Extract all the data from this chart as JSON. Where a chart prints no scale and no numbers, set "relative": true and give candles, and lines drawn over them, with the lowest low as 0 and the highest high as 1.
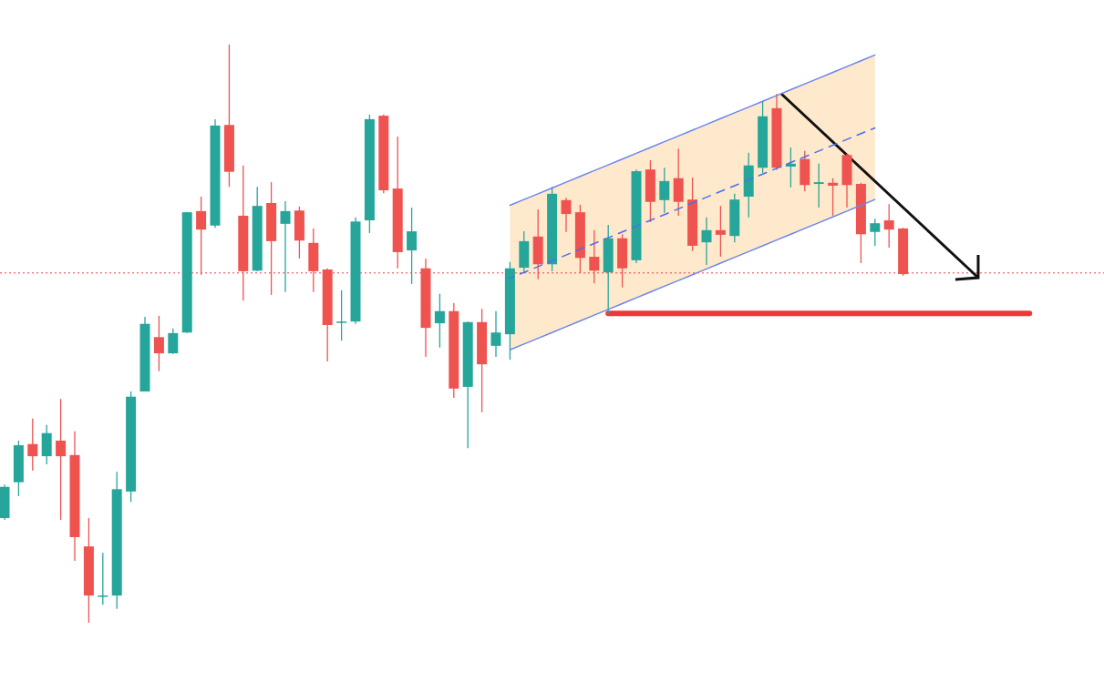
{
  "chart_data": {
    "type": "candlestick",
    "relative": true,
    "categories": [
      null,
      null,
      null,
      null,
      null,
      null,
      null,
      null,
      null,
      null,
      null,
      null,
      null,
      null,
      null,
      null,
      null,
      null,
      null,
      null,
      null,
      null,
      null,
      null,
      null,
      null,
      null,
      null,
      null,
      null,
      null,
      null,
      null,
      null,
      null,
      null,
      null,
      null,
      null,
      null,
      null,
      null,
      null,
      null,
      null,
      null,
      null,
      null,
      null,
      null,
      null,
      null,
      null,
      null,
      null,
      null,
      null,
      null,
      null,
      null,
      null,
      null,
      null,
      null,
      null,
      null,
      null,
      null,
      null,
      null,
      null,
      null,
      null,
      null,
      null
    ],
    "ohlc": [
      [
        0.181,
        0.239,
        0.178,
        0.235
      ],
      [
        0.243,
        0.315,
        0.219,
        0.307
      ],
      [
        0.309,
        0.353,
        0.263,
        0.288
      ],
      [
        0.288,
        0.342,
        0.274,
        0.328
      ],
      [
        0.315,
        0.387,
        0.178,
        0.288
      ],
      [
        0.29,
        0.331,
        0.107,
        0.148
      ],
      [
        0.132,
        0.181,
        0,
        0.047
      ],
      [
        0.046,
        0.121,
        0.031,
        0.047
      ],
      [
        0.047,
        0.261,
        0.024,
        0.231
      ],
      [
        0.227,
        0.4,
        0.209,
        0.391
      ],
      [
        0.4,
        0.529,
        0.4,
        0.517
      ],
      [
        0.494,
        0.531,
        0.435,
        0.466
      ],
      [
        0.466,
        0.509,
        0.465,
        0.501
      ],
      [
        0.502,
        0.71,
        0.501,
        0.71
      ],
      [
        0.712,
        0.737,
        0.602,
        0.68
      ],
      [
        0.687,
        0.871,
        0.683,
        0.86
      ],
      [
        0.861,
        1,
        0.754,
        0.78
      ],
      [
        0.704,
        0.791,
        0.557,
        0.608
      ],
      [
        0.609,
        0.754,
        0.608,
        0.721
      ],
      [
        0.726,
        0.762,
        0.567,
        0.66
      ],
      [
        0.69,
        0.729,
        0.572,
        0.712
      ],
      [
        0.713,
        0.72,
        0.63,
        0.661
      ],
      [
        0.657,
        0.682,
        0.572,
        0.608
      ],
      [
        0.611,
        0.613,
        0.452,
        0.515
      ],
      [
        0.52,
        0.575,
        0.488,
        0.521
      ],
      [
        0.521,
        0.701,
        0.517,
        0.694
      ],
      [
        0.696,
        0.879,
        0.674,
        0.871
      ],
      [
        0.877,
        0.879,
        0.743,
        0.748
      ],
      [
        0.751,
        0.841,
        0.613,
        0.641
      ],
      [
        0.644,
        0.718,
        0.586,
        0.677
      ],
      [
        0.613,
        0.63,
        0.46,
        0.51
      ],
      [
        0.518,
        0.569,
        0.476,
        0.539
      ],
      [
        0.539,
        0.553,
        0.389,
        0.405
      ],
      [
        0.408,
        0.521,
        0.302,
        0.52
      ],
      [
        0.52,
        0.543,
        0.364,
        0.447
      ],
      [
        0.479,
        0.539,
        0.46,
        0.502
      ],
      [
        0.499,
        0.624,
        0.455,
        0.613
      ],
      [
        0.614,
        0.677,
        0.605,
        0.66
      ],
      [
        0.668,
        0.715,
        0.594,
        0.62
      ],
      [
        0.62,
        0.754,
        0.608,
        0.742
      ],
      [
        0.731,
        0.735,
        0.676,
        0.707
      ],
      [
        0.71,
        0.723,
        0.605,
        0.631
      ],
      [
        0.633,
        0.679,
        0.587,
        0.609
      ],
      [
        0.606,
        0.688,
        0.534,
        0.665
      ],
      [
        0.665,
        0.672,
        0.58,
        0.613
      ],
      [
        0.627,
        0.784,
        0.622,
        0.781
      ],
      [
        0.784,
        0.8,
        0.693,
        0.728
      ],
      [
        0.731,
        0.787,
        0.709,
        0.764
      ],
      [
        0.769,
        0.82,
        0.704,
        0.728
      ],
      [
        0.732,
        0.77,
        0.643,
        0.652
      ],
      [
        0.658,
        0.701,
        0.619,
        0.679
      ],
      [
        0.679,
        0.721,
        0.633,
        0.671
      ],
      [
        0.669,
        0.742,
        0.658,
        0.732
      ],
      [
        0.737,
        0.813,
        0.701,
        0.791
      ],
      [
        0.787,
        0.901,
        0.778,
        0.876
      ],
      [
        0.89,
        0.915,
        0.783,
        0.787
      ],
      [
        0.789,
        0.822,
        0.753,
        0.794
      ],
      [
        0.802,
        0.816,
        0.746,
        0.757
      ],
      [
        0.759,
        0.794,
        0.718,
        0.762
      ],
      [
        0.761,
        0.769,
        0.704,
        0.756
      ],
      [
        0.809,
        0.811,
        0.718,
        0.757
      ],
      [
        0.759,
        0.761,
        0.622,
        0.672
      ],
      [
        0.676,
        0.699,
        0.652,
        0.691
      ],
      [
        0.696,
        0.724,
        0.649,
        0.68
      ],
      [
        0.682,
        0.683,
        0.6,
        0.603
      ],
      null,
      null,
      null,
      null,
      null,
      null,
      null,
      null,
      null,
      null
    ],
    "colors": [
      "#26a69a",
      "#26a69a",
      "#ef5350",
      "#26a69a",
      "#ef5350",
      "#ef5350",
      "#ef5350",
      "#26a69a",
      "#26a69a",
      "#26a69a",
      "#26a69a",
      "#ef5350",
      "#26a69a",
      "#26a69a",
      "#ef5350",
      "#26a69a",
      "#ef5350",
      "#ef5350",
      "#26a69a",
      "#ef5350",
      "#26a69a",
      "#ef5350",
      "#ef5350",
      "#ef5350",
      "#26a69a",
      "#26a69a",
      "#26a69a",
      "#ef5350",
      "#ef5350",
      "#26a69a",
      "#ef5350",
      "#26a69a",
      "#ef5350",
      "#26a69a",
      "#ef5350",
      "#26a69a",
      "#26a69a",
      "#26a69a",
      "#ef5350",
      "#26a69a",
      "#ef5350",
      "#ef5350",
      "#ef5350",
      "#26a69a",
      "#ef5350",
      "#26a69a",
      "#ef5350",
      "#26a69a",
      "#ef5350",
      "#ef5350",
      "#26a69a",
      "#ef5350",
      "#26a69a",
      "#26a69a",
      "#26a69a",
      "#ef5350",
      "#26a69a",
      "#ef5350",
      "#26a69a",
      "#ef5350",
      "#ef5350",
      "#ef5350",
      "#26a69a",
      "#ef5350",
      "#ef5350",
      null,
      null,
      null,
      null,
      null,
      null,
      null,
      null,
      null,
      null
    ],
    "series": [
      {
        "type": "line",
        "color": "#6a85ee",
        "values": [
          null,
          null,
          null,
          null,
          null,
          null,
          null,
          null,
          null,
          null,
          null,
          null,
          null,
          null,
          null,
          null,
          null,
          null,
          null,
          null,
          null,
          null,
          null,
          null,
          null,
          null,
          null,
          null,
          null,
          null,
          null,
          null,
          null,
          null,
          null,
          null,
          0.722,
          0.732,
          0.742,
          0.752,
          0.762,
          0.772,
          0.782,
          0.792,
          0.802,
          0.812,
          0.822,
          0.832,
          0.842,
          0.852,
          0.862,
          0.872,
          0.882,
          0.892,
          0.902,
          0.912,
          0.922,
          0.932,
          0.942,
          0.952,
          0.962,
          0.972,
          0.982,
          null,
          null,
          null,
          null,
          null,
          null,
          null,
          null,
          null,
          null,
          null,
          null
        ]
      },
      {
        "type": "line",
        "color": "#6a85ee",
        "values": [
          null,
          null,
          null,
          null,
          null,
          null,
          null,
          null,
          null,
          null,
          null,
          null,
          null,
          null,
          null,
          null,
          null,
          null,
          null,
          null,
          null,
          null,
          null,
          null,
          null,
          null,
          null,
          null,
          null,
          null,
          null,
          null,
          null,
          null,
          null,
          null,
          0.472,
          0.482,
          0.492,
          0.502,
          0.512,
          0.522,
          0.532,
          0.542,
          0.552,
          0.562,
          0.572,
          0.582,
          0.592,
          0.602,
          0.612,
          0.622,
          0.632,
          0.642,
          0.652,
          0.662,
          0.672,
          0.682,
          0.692,
          0.702,
          0.712,
          0.722,
          0.732,
          null,
          null,
          null,
          null,
          null,
          null,
          null,
          null,
          null,
          null,
          null,
          null
        ]
      },
      {
        "type": "line",
        "color": "#4a6ef0",
        "line_style": "dashed",
        "values": [
          null,
          null,
          null,
          null,
          null,
          null,
          null,
          null,
          null,
          null,
          null,
          null,
          null,
          null,
          null,
          null,
          null,
          null,
          null,
          null,
          null,
          null,
          null,
          null,
          null,
          null,
          null,
          null,
          null,
          null,
          null,
          null,
          null,
          null,
          null,
          null,
          0.596,
          0.606,
          0.616,
          0.626,
          0.636,
          0.646,
          0.656,
          0.666,
          0.676,
          0.686,
          0.696,
          0.706,
          0.716,
          0.726,
          0.736,
          0.746,
          0.756,
          0.766,
          0.776,
          0.786,
          0.796,
          0.806,
          0.816,
          0.826,
          0.836,
          0.846,
          0.856,
          null,
          null,
          null,
          null,
          null,
          null,
          null,
          null,
          null,
          null,
          null,
          null
        ],
        "lower": [
          null,
          null,
          null,
          null,
          null,
          null,
          null,
          null,
          null,
          null,
          null,
          null,
          null,
          null,
          null,
          null,
          null,
          null,
          null,
          null,
          null,
          null,
          null,
          null,
          null,
          null,
          null,
          null,
          null,
          null,
          null,
          null,
          null,
          null,
          null,
          null,
          0.472,
          0.482,
          0.492,
          0.502,
          0.512,
          0.522,
          0.532,
          0.542,
          0.552,
          0.562,
          0.572,
          0.582,
          0.592,
          0.602,
          0.612,
          0.622,
          0.632,
          0.642,
          0.652,
          0.662,
          0.672,
          0.682,
          0.692,
          0.702,
          0.712,
          0.722,
          0.732,
          null,
          null,
          null,
          null,
          null,
          null,
          null,
          null,
          null,
          null,
          null,
          null
        ],
        "upper": [
          null,
          null,
          null,
          null,
          null,
          null,
          null,
          null,
          null,
          null,
          null,
          null,
          null,
          null,
          null,
          null,
          null,
          null,
          null,
          null,
          null,
          null,
          null,
          null,
          null,
          null,
          null,
          null,
          null,
          null,
          null,
          null,
          null,
          null,
          null,
          null,
          0.722,
          0.732,
          0.742,
          0.752,
          0.762,
          0.772,
          0.782,
          0.792,
          0.802,
          0.812,
          0.822,
          0.832,
          0.842,
          0.852,
          0.862,
          0.872,
          0.882,
          0.892,
          0.902,
          0.912,
          0.922,
          0.932,
          0.942,
          0.952,
          0.962,
          0.972,
          0.982,
          null,
          null,
          null,
          null,
          null,
          null,
          null,
          null,
          null,
          null,
          null,
          null
        ]
      },
      {
        "type": "line",
        "color": "#f23636",
        "values": [
          null,
          null,
          null,
          null,
          null,
          null,
          null,
          null,
          null,
          null,
          null,
          null,
          null,
          null,
          null,
          null,
          null,
          null,
          null,
          null,
          null,
          null,
          null,
          null,
          null,
          null,
          null,
          null,
          null,
          null,
          null,
          null,
          null,
          null,
          null,
          null,
          null,
          null,
          null,
          null,
          null,
          null,
          null,
          0.535,
          0.535,
          0.535,
          0.535,
          0.535,
          0.535,
          0.535,
          0.535,
          0.535,
          0.535,
          0.535,
          0.535,
          0.535,
          0.535,
          0.535,
          0.535,
          0.535,
          0.535,
          0.535,
          0.535,
          0.535,
          0.535,
          0.535,
          0.535,
          0.535,
          0.535,
          0.535,
          0.535,
          0.535,
          0.535,
          0.535,
          null
        ]
      }
    ],
    "ref_lines": [
      {
        "axis": "y",
        "value": 0.605,
        "color": "#f23645",
        "line_style": "dotted"
      }
    ]
  }
}
